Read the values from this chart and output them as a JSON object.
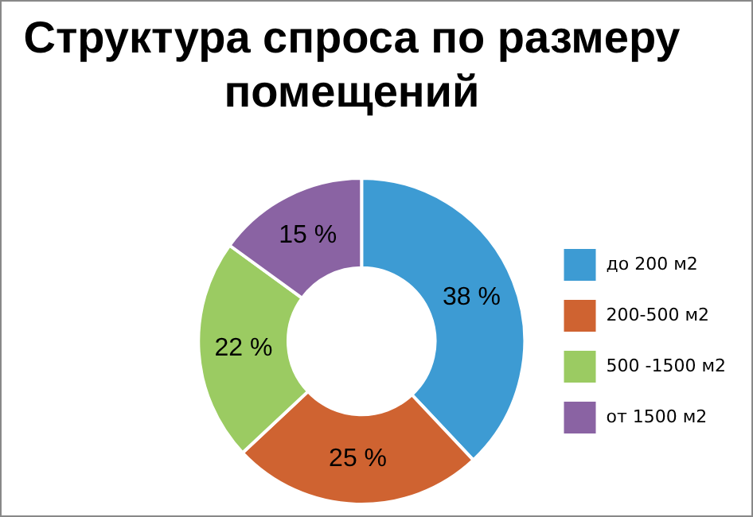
{
  "chart_data": {
    "type": "donut",
    "title": "Структура спроса по размеру помещений",
    "categories": [
      "до 200 м2",
      "200-500 м2",
      "500 -1500 м2",
      "от 1500 м2"
    ],
    "values": [
      38,
      25,
      22,
      15
    ],
    "colors": [
      "#3d9bd3",
      "#cf6331",
      "#9bcb62",
      "#8a63a3"
    ],
    "value_labels": [
      "38 %",
      "25 %",
      "22 %",
      "15 %"
    ],
    "legend": "right"
  }
}
